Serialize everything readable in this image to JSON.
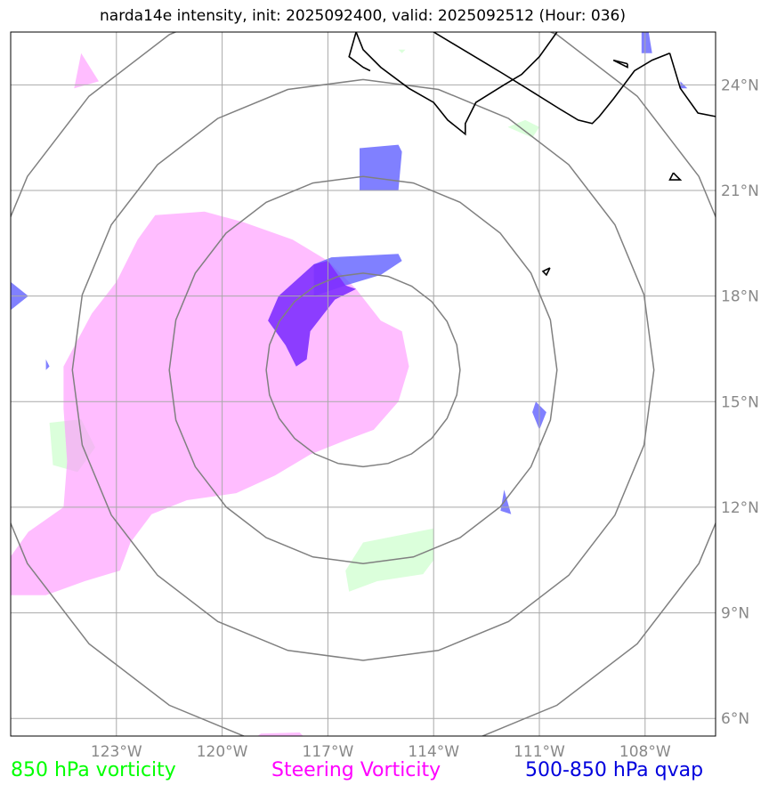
{
  "title": "narda14e intensity, init: 2025092400, valid: 2025092512 (Hour: 036)",
  "map": {
    "lon_range": [
      -126.0,
      -106.0
    ],
    "lat_range": [
      5.5,
      25.5
    ],
    "longitudes": [
      -123,
      -120,
      -117,
      -114,
      -111,
      -108
    ],
    "latitudes": [
      6,
      9,
      12,
      15,
      18,
      21,
      24
    ],
    "lon_labels": [
      "123°W",
      "120°W",
      "117°W",
      "114°W",
      "111°W",
      "108°W"
    ],
    "lat_labels": [
      "6°N",
      "9°N",
      "12°N",
      "15°N",
      "18°N",
      "21°N",
      "24°N"
    ],
    "storm_center": {
      "lon": -116.0,
      "lat": 15.9
    },
    "range_ring_radii_deg": [
      2.75,
      5.5,
      8.25,
      11.0
    ]
  },
  "colors": {
    "vorticity_850": "#ccffcc",
    "steering_vorticity": "#ff99ff",
    "qvap": "#5555ff",
    "overlap": "#7f2fff",
    "ring": "#808080",
    "grid": "#a9a9a9",
    "coast": "#000000"
  },
  "fields": {
    "steering_vorticity": [
      [
        [
          -121.9,
          20.3
        ],
        [
          -120.5,
          20.4
        ],
        [
          -119.4,
          20.1
        ],
        [
          -118.0,
          19.6
        ],
        [
          -117.0,
          19.0
        ],
        [
          -116.2,
          18.2
        ],
        [
          -115.5,
          17.3
        ],
        [
          -114.9,
          17.0
        ],
        [
          -114.7,
          16.0
        ],
        [
          -115.0,
          15.0
        ],
        [
          -115.7,
          14.2
        ],
        [
          -116.5,
          13.9
        ],
        [
          -117.5,
          13.5
        ],
        [
          -118.5,
          12.9
        ],
        [
          -119.6,
          12.4
        ],
        [
          -121.0,
          12.2
        ],
        [
          -122.0,
          11.8
        ],
        [
          -122.6,
          11.0
        ],
        [
          -122.9,
          10.2
        ],
        [
          -123.9,
          9.9
        ],
        [
          -125.0,
          9.5
        ],
        [
          -126.0,
          9.5
        ],
        [
          -126.0,
          10.6
        ],
        [
          -125.5,
          11.3
        ],
        [
          -124.5,
          12.0
        ],
        [
          -124.4,
          13.3
        ],
        [
          -124.5,
          14.8
        ],
        [
          -124.5,
          16.0
        ],
        [
          -123.7,
          17.5
        ],
        [
          -123.0,
          18.4
        ],
        [
          -122.4,
          19.6
        ]
      ],
      [
        [
          -118.9,
          5.57
        ],
        [
          -117.8,
          5.6
        ],
        [
          -117.7,
          5.5
        ],
        [
          -119.0,
          5.5
        ]
      ],
      [
        [
          -124.0,
          24.9
        ],
        [
          -123.5,
          24.1
        ],
        [
          -124.2,
          23.9
        ]
      ]
    ],
    "vorticity_850": [
      [
        [
          -124.9,
          14.4
        ],
        [
          -124.0,
          14.5
        ],
        [
          -123.6,
          13.7
        ],
        [
          -124.1,
          13.0
        ],
        [
          -124.8,
          13.2
        ]
      ],
      [
        [
          -116.0,
          11.0
        ],
        [
          -114.0,
          11.4
        ],
        [
          -114.0,
          10.5
        ],
        [
          -114.3,
          10.1
        ],
        [
          -115.6,
          9.9
        ],
        [
          -116.4,
          9.6
        ],
        [
          -116.5,
          10.2
        ]
      ],
      [
        [
          -111.2,
          22.5
        ],
        [
          -111.9,
          22.8
        ],
        [
          -111.4,
          23.0
        ],
        [
          -111.0,
          22.8
        ]
      ],
      [
        [
          -115.0,
          25.0
        ],
        [
          -114.8,
          25.0
        ],
        [
          -114.9,
          24.9
        ]
      ]
    ],
    "qvap": [
      [
        [
          -116.1,
          22.2
        ],
        [
          -115.0,
          22.3
        ],
        [
          -114.9,
          22.1
        ],
        [
          -115.0,
          21.0
        ],
        [
          -116.1,
          21.0
        ]
      ],
      [
        [
          -117.4,
          18.9
        ],
        [
          -116.9,
          19.1
        ],
        [
          -115.0,
          19.2
        ],
        [
          -114.9,
          19.0
        ],
        [
          -115.5,
          18.6
        ],
        [
          -116.5,
          18.3
        ],
        [
          -117.4,
          18.0
        ]
      ],
      [
        [
          -111.1,
          15.0
        ],
        [
          -110.8,
          14.7
        ],
        [
          -111.0,
          14.2
        ],
        [
          -111.2,
          14.7
        ]
      ],
      [
        [
          -112.0,
          12.5
        ],
        [
          -111.8,
          11.8
        ],
        [
          -112.1,
          11.9
        ]
      ],
      [
        [
          -126.0,
          18.4
        ],
        [
          -125.5,
          18.0
        ],
        [
          -126.0,
          17.6
        ]
      ],
      [
        [
          -125.0,
          16.2
        ],
        [
          -124.9,
          16.0
        ],
        [
          -125.0,
          15.9
        ]
      ],
      [
        [
          -108.1,
          25.5
        ],
        [
          -107.9,
          25.5
        ],
        [
          -107.8,
          24.9
        ],
        [
          -108.1,
          24.9
        ]
      ],
      [
        [
          -107.0,
          24.1
        ],
        [
          -106.8,
          23.9
        ],
        [
          -107.0,
          23.9
        ]
      ]
    ],
    "overlap": [
      [
        [
          -117.0,
          19.0
        ],
        [
          -117.4,
          18.9
        ],
        [
          -118.4,
          18.0
        ],
        [
          -118.7,
          17.3
        ],
        [
          -118.2,
          16.6
        ],
        [
          -117.9,
          16.0
        ],
        [
          -117.6,
          16.2
        ],
        [
          -117.5,
          17.0
        ],
        [
          -116.8,
          17.9
        ],
        [
          -116.2,
          18.2
        ],
        [
          -116.5,
          18.3
        ]
      ]
    ],
    "coastline": [
      [
        [
          -116.2,
          25.5
        ],
        [
          -116.0,
          25.0
        ],
        [
          -115.5,
          24.5
        ],
        [
          -114.7,
          23.9
        ],
        [
          -114.0,
          23.5
        ],
        [
          -113.6,
          23.0
        ],
        [
          -113.1,
          22.6
        ],
        [
          -113.1,
          22.9
        ],
        [
          -112.8,
          23.5
        ],
        [
          -112.0,
          24.0
        ],
        [
          -111.5,
          24.3
        ],
        [
          -111.0,
          24.8
        ],
        [
          -110.5,
          25.5
        ]
      ],
      [
        [
          -116.2,
          25.5
        ],
        [
          -116.4,
          24.8
        ],
        [
          -116.0,
          24.5
        ],
        [
          -115.8,
          24.4
        ]
      ],
      [
        [
          -114.0,
          25.5
        ],
        [
          -113.0,
          24.9
        ],
        [
          -112.5,
          24.6
        ],
        [
          -112.0,
          24.3
        ],
        [
          -111.2,
          23.8
        ],
        [
          -110.4,
          23.3
        ],
        [
          -109.9,
          23.0
        ],
        [
          -109.5,
          22.9
        ],
        [
          -109.3,
          23.1
        ],
        [
          -108.9,
          23.6
        ],
        [
          -108.3,
          24.4
        ],
        [
          -107.8,
          24.7
        ],
        [
          -107.3,
          24.9
        ]
      ],
      [
        [
          -107.3,
          24.9
        ],
        [
          -107.0,
          23.9
        ],
        [
          -106.5,
          23.2
        ],
        [
          -106.0,
          23.1
        ]
      ],
      [
        [
          -110.7,
          18.8
        ],
        [
          -110.9,
          18.7
        ],
        [
          -110.8,
          18.6
        ],
        [
          -110.7,
          18.8
        ]
      ],
      [
        [
          -107.2,
          21.5
        ],
        [
          -107.3,
          21.3
        ],
        [
          -107.0,
          21.3
        ],
        [
          -107.2,
          21.5
        ]
      ],
      [
        [
          -108.5,
          24.6
        ],
        [
          -108.9,
          24.7
        ],
        [
          -108.5,
          24.5
        ],
        [
          -108.5,
          24.6
        ]
      ]
    ]
  },
  "legend": {
    "vorticity_850": "850 hPa vorticity",
    "steering_vorticity": "Steering Vorticity",
    "qvap": "500-850 hPa qvap"
  }
}
